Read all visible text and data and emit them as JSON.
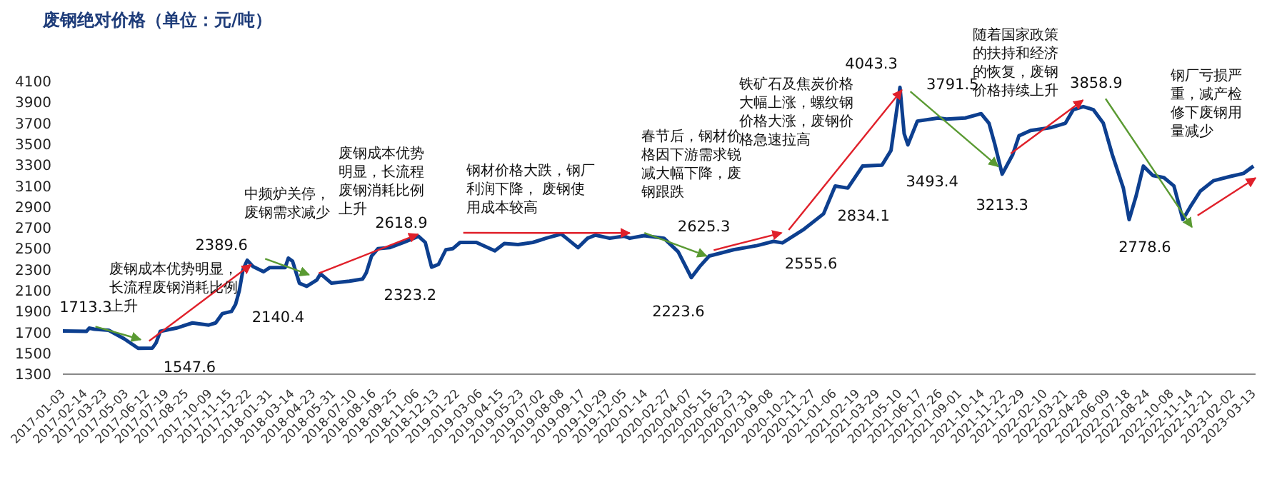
{
  "chart_data": {
    "type": "line",
    "title": "废钢绝对价格（单位：元/吨）",
    "x": [
      "2017-01-03",
      "2017-02-17",
      "2017-02-22",
      "2017-03-04",
      "2017-03-31",
      "2017-04-29",
      "2017-05-26",
      "2017-06-22",
      "2017-06-29",
      "2017-07-07",
      "2017-08-06",
      "2017-09-06",
      "2017-10-07",
      "2017-10-20",
      "2017-11-02",
      "2017-11-19",
      "2017-11-27",
      "2017-12-04",
      "2017-12-11",
      "2017-12-19",
      "2017-12-30",
      "2018-01-19",
      "2018-01-31",
      "2018-03-01",
      "2018-03-07",
      "2018-03-15",
      "2018-03-28",
      "2018-04-11",
      "2018-04-30",
      "2018-05-07",
      "2018-05-28",
      "2018-07-01",
      "2018-07-26",
      "2018-08-02",
      "2018-08-12",
      "2018-08-24",
      "2018-09-15",
      "2018-10-12",
      "2018-11-09",
      "2018-11-22",
      "2018-11-30",
      "2018-12-04",
      "2018-12-17",
      "2018-12-31",
      "2019-01-13",
      "2019-01-27",
      "2019-02-27",
      "2019-04-03",
      "2019-04-21",
      "2019-05-17",
      "2019-06-14",
      "2019-07-09",
      "2019-08-07",
      "2019-08-17",
      "2019-09-08",
      "2019-09-26",
      "2019-10-11",
      "2019-11-07",
      "2019-12-04",
      "2019-12-15",
      "2020-01-11",
      "2020-02-18",
      "2020-03-16",
      "2020-04-10",
      "2020-04-26",
      "2020-05-14",
      "2020-06-29",
      "2020-08-13",
      "2020-09-13",
      "2020-09-30",
      "2020-11-08",
      "2020-12-17",
      "2021-01-08",
      "2021-02-01",
      "2021-03-01",
      "2021-04-07",
      "2021-04-24",
      "2021-05-11",
      "2021-05-19",
      "2021-05-26",
      "2021-06-13",
      "2021-07-23",
      "2021-08-07",
      "2021-09-12",
      "2021-10-12",
      "2021-10-27",
      "2021-11-07",
      "2021-11-21",
      "2021-12-11",
      "2021-12-23",
      "2022-01-14",
      "2022-02-23",
      "2022-03-21",
      "2022-04-05",
      "2022-04-24",
      "2022-05-13",
      "2022-06-01",
      "2022-06-18",
      "2022-07-09",
      "2022-07-20",
      "2022-08-02",
      "2022-08-16",
      "2022-09-03",
      "2022-09-24",
      "2022-10-13",
      "2022-10-30",
      "2022-11-13",
      "2022-12-02",
      "2022-12-27",
      "2023-01-27",
      "2023-02-22",
      "2023-03-13"
    ],
    "series": [
      {
        "color": "#0d3f8f",
        "values": [
          1713.3,
          1710,
          1740,
          1730,
          1720,
          1640,
          1547.6,
          1550,
          1600,
          1710,
          1740,
          1790,
          1770,
          1790,
          1880,
          1900,
          1970,
          2100,
          2300,
          2389.6,
          2330,
          2280,
          2320,
          2320,
          2410,
          2380,
          2170,
          2140.4,
          2200,
          2260,
          2170,
          2190,
          2210,
          2270,
          2430,
          2500,
          2510,
          2560,
          2618.9,
          2560,
          2400,
          2323.2,
          2350,
          2490,
          2500,
          2560,
          2560,
          2480,
          2550,
          2540,
          2560,
          2600,
          2640,
          2600,
          2510,
          2600,
          2630,
          2600,
          2620,
          2600,
          2625.3,
          2600,
          2470,
          2223.6,
          2330,
          2430,
          2490,
          2530,
          2570,
          2555.6,
          2680,
          2834.1,
          3100,
          3080,
          3290,
          3300,
          3440,
          4043.3,
          3600,
          3493.4,
          3720,
          3750,
          3740,
          3750,
          3791.5,
          3700,
          3500,
          3213.3,
          3400,
          3580,
          3630,
          3660,
          3700,
          3830,
          3858.9,
          3830,
          3700,
          3400,
          3080,
          2778.6,
          3000,
          3290,
          3200,
          3180,
          3100,
          2780,
          2900,
          3050,
          3150,
          3190,
          3220,
          3290
        ]
      }
    ],
    "xlim": [
      "2017-01-03",
      "2023-03-17"
    ],
    "xticks": [
      "2017-01-03",
      "2017-02-14",
      "2017-03-23",
      "2017-05-03",
      "2017-06-12",
      "2017-07-19",
      "2017-08-25",
      "2017-10-09",
      "2017-11-15",
      "2017-12-22",
      "2018-01-31",
      "2018-03-14",
      "2018-04-23",
      "2018-05-31",
      "2018-07-10",
      "2018-08-16",
      "2018-09-25",
      "2018-11-06",
      "2018-12-13",
      "2019-01-22",
      "2019-03-06",
      "2019-04-15",
      "2019-05-23",
      "2019-07-02",
      "2019-08-08",
      "2019-09-17",
      "2019-10-29",
      "2019-12-05",
      "2020-01-14",
      "2020-02-27",
      "2020-04-07",
      "2020-05-15",
      "2020-06-23",
      "2020-07-31",
      "2020-09-08",
      "2020-10-21",
      "2020-11-27",
      "2021-01-06",
      "2021-02-19",
      "2021-03-29",
      "2021-05-10",
      "2021-06-17",
      "2021-07-26",
      "2021-09-01",
      "2021-10-14",
      "2021-11-22",
      "2021-12-29",
      "2022-02-10",
      "2022-03-21",
      "2022-04-28",
      "2022-06-09",
      "2022-07-18",
      "2022-08-24",
      "2022-10-08",
      "2022-11-14",
      "2022-12-21",
      "2023-02-02",
      "2023-03-13"
    ],
    "ylim": [
      1300,
      4100
    ],
    "yticks": [
      1300,
      1500,
      1700,
      1900,
      2100,
      2300,
      2500,
      2700,
      2900,
      3100,
      3300,
      3500,
      3700,
      3900,
      4100
    ],
    "annotations": [
      "废钢成本优势明显，长流程废钢消耗比例上升",
      "中频炉关停，废钢需求减少",
      "废钢成本优势明显，长流程废钢消耗比例上升",
      {
        "text": "钢材价格大跌，钢厂利润下降， 废钢使用成本较高",
        "x": "2019-12-15",
        "y": 2650
      },
      "春节后，钢材价格因下游需求锐减大幅下降，废钢跟跌",
      "铁矿石及焦炭价格大幅上涨，螺纹钢价格大涨，废钢价格急速拉高",
      "随着国家政策的扶持和经济的恢复，废钢价格持续上升",
      "钢厂亏损严重，减产检修下废钢用量减少",
      {
        "text": "1713.3",
        "x": "2017-01-03",
        "y": 1713.3
      },
      {
        "text": "1547.6",
        "x": "2017-05-26",
        "y": 1547.6
      },
      {
        "text": "2389.6",
        "x": "2017-12-19",
        "y": 2389.6
      },
      {
        "text": "2140.4",
        "x": "2018-04-11",
        "y": 2140.4
      },
      {
        "text": "2618.9",
        "x": "2018-11-09",
        "y": 2618.9
      },
      {
        "text": "2323.2",
        "x": "2018-12-04",
        "y": 2323.2
      },
      {
        "text": "2625.3",
        "x": "2020-01-11",
        "y": 2625.3
      },
      {
        "text": "2223.6",
        "x": "2020-04-10",
        "y": 2223.6
      },
      {
        "text": "2555.6",
        "x": "2020-09-30",
        "y": 2555.6
      },
      {
        "text": "2834.1",
        "x": "2020-12-17",
        "y": 2834.1
      },
      {
        "text": "4043.3",
        "x": "2021-05-11",
        "y": 4043.3
      },
      {
        "text": "3493.4",
        "x": "2021-05-26",
        "y": 3493.4
      },
      {
        "text": "3791.5",
        "x": "2021-10-12",
        "y": 3791.5
      },
      {
        "text": "3213.3",
        "x": "2021-11-21",
        "y": 3213.3
      },
      {
        "text": "3858.9",
        "x": "2022-04-24",
        "y": 3858.9
      },
      {
        "text": "2778.6",
        "x": "2022-07-20",
        "y": 2778.6
      }
    ]
  }
}
